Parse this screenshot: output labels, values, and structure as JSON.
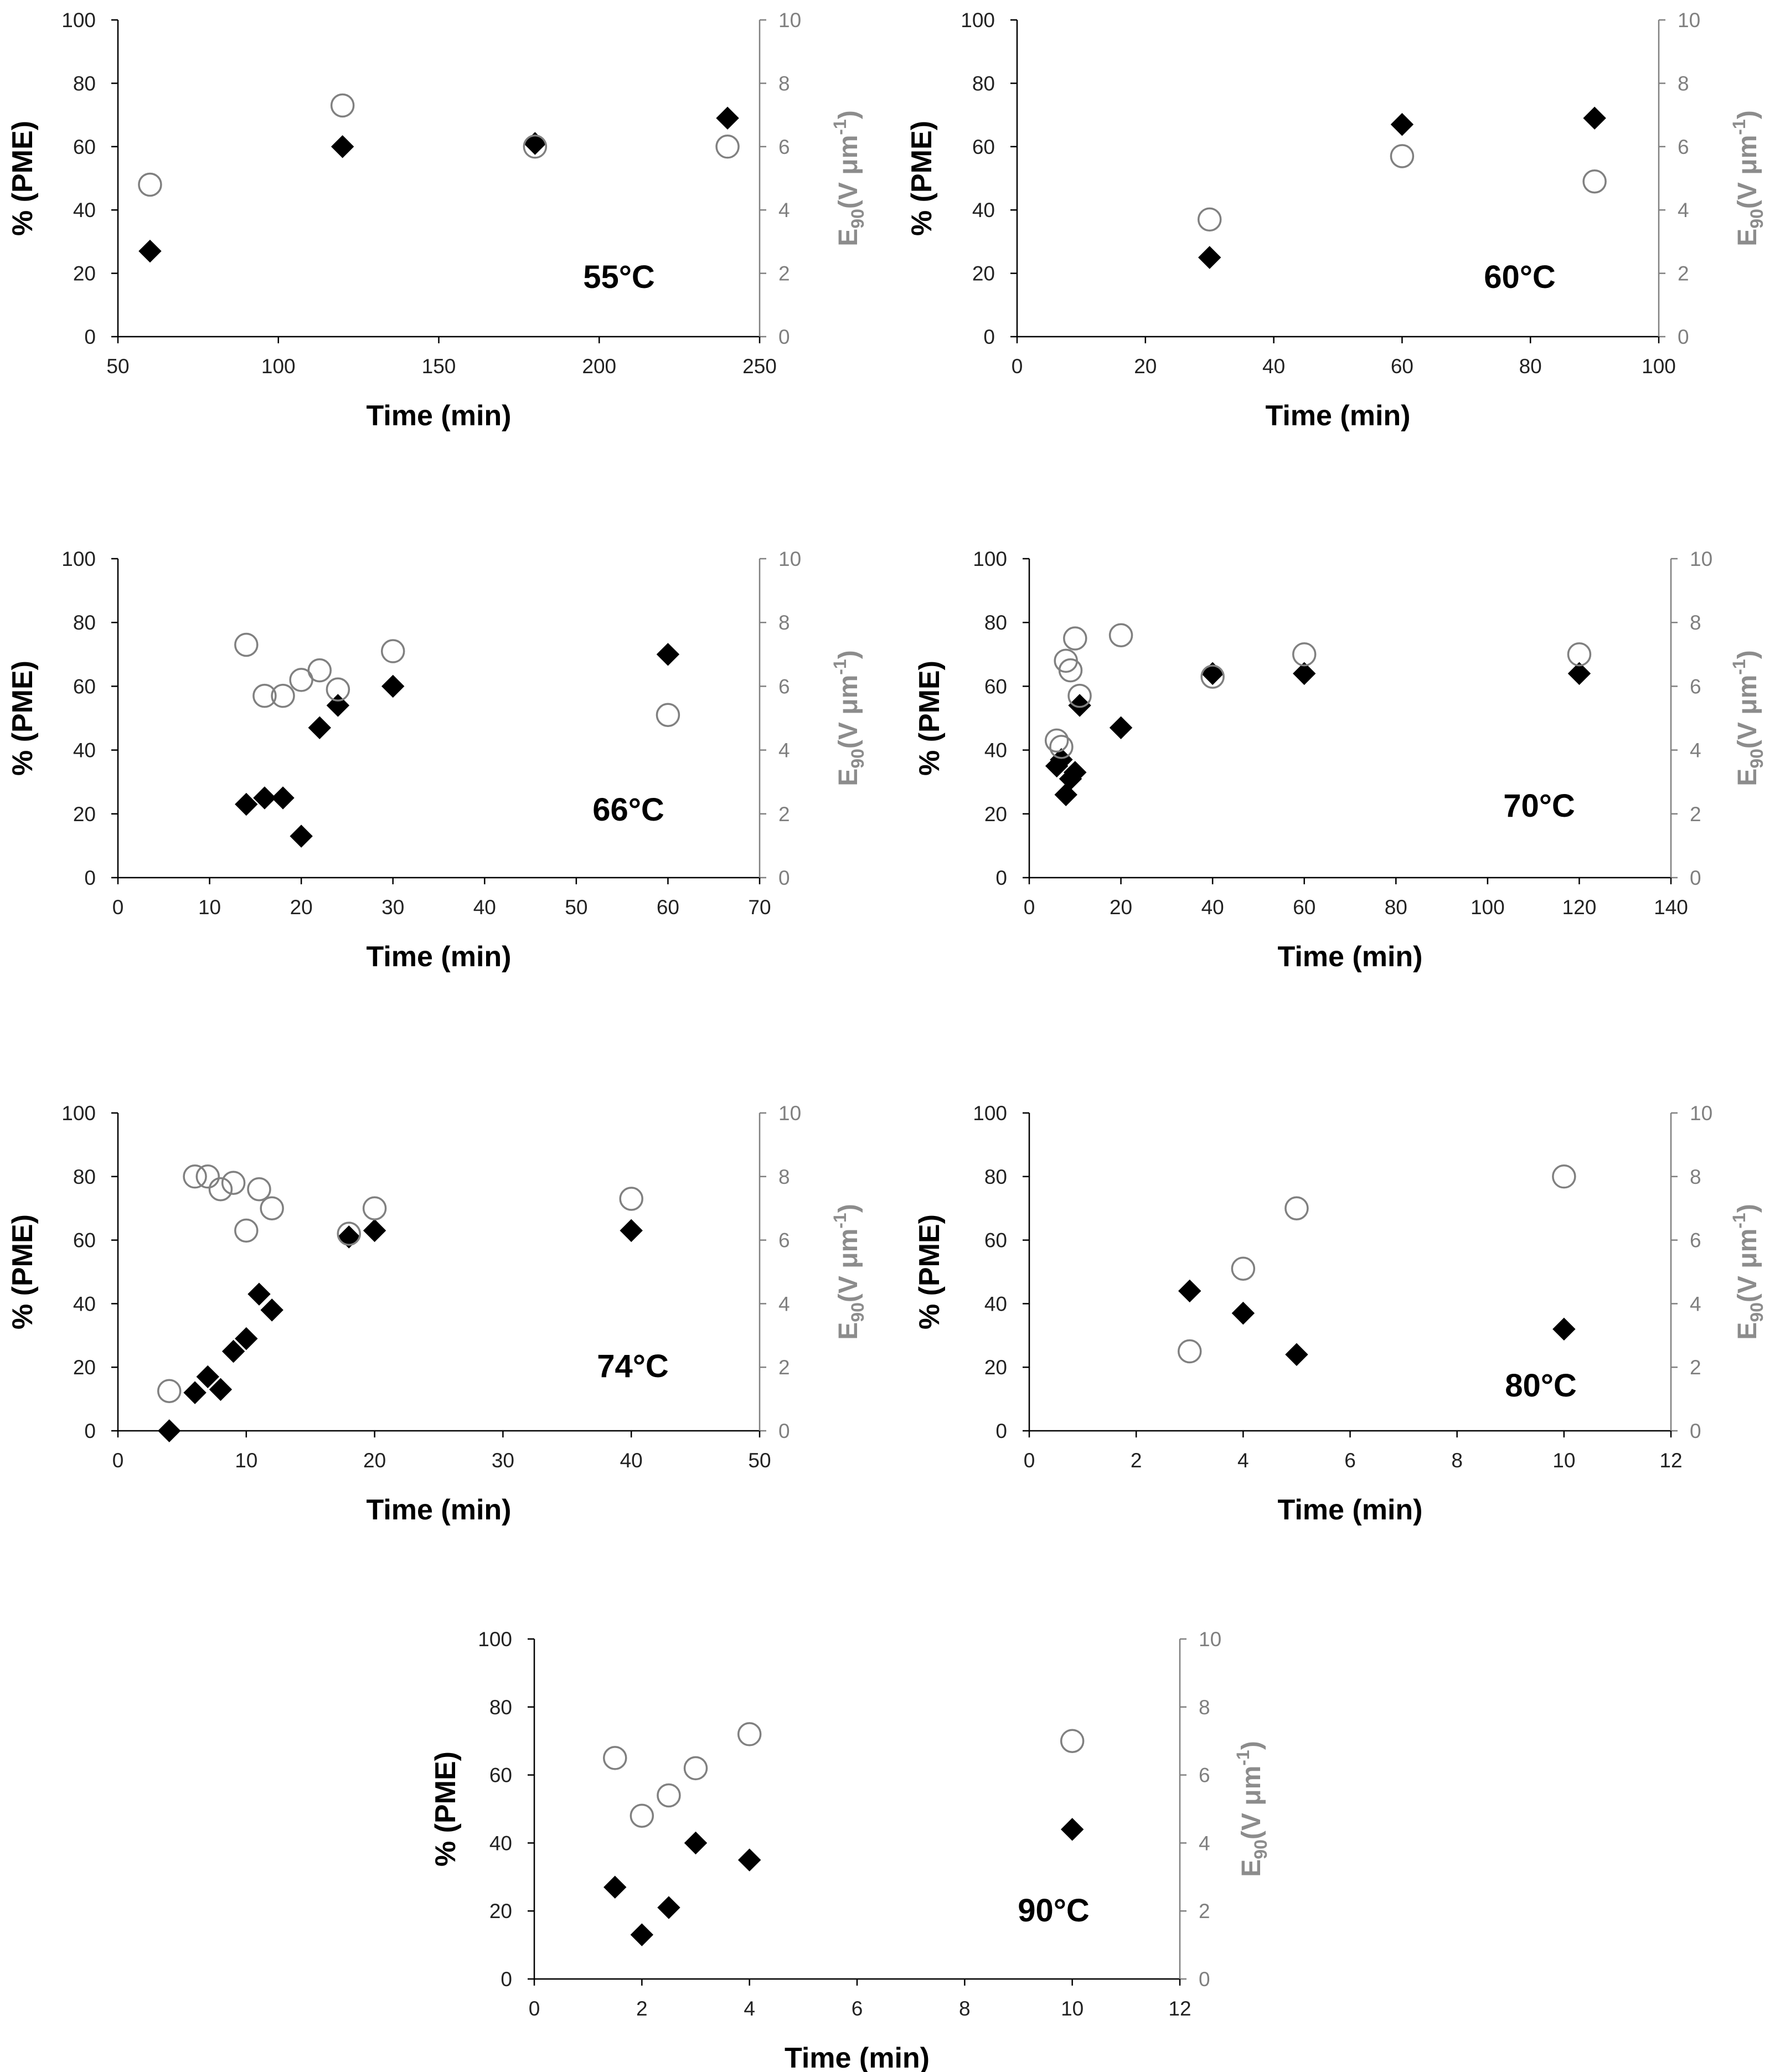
{
  "figure": {
    "colors": {
      "pme_marker": "#000000",
      "e90_marker": "#808080",
      "left_axis": "#000000",
      "right_axis": "#808080",
      "tick_left": "#222222",
      "tick_right": "#7f7f7f",
      "y2_label": "#8c8c8c"
    },
    "markers": {
      "pme": "diamond-filled",
      "e90": "circle-open"
    }
  },
  "chart_data": [
    {
      "type": "scatter",
      "annotation": "55°C",
      "xlabel": "Time (min)",
      "ylabel": "% (PME)",
      "y2label": {
        "base": "E",
        "sub": "90",
        "mid": "(V μm",
        "sup": "-1",
        "end": ")"
      },
      "xlim": [
        50,
        250
      ],
      "xticks": [
        50,
        100,
        150,
        200,
        250
      ],
      "ylim": [
        0,
        100
      ],
      "yticks": [
        0,
        20,
        40,
        60,
        80,
        100
      ],
      "y2lim": [
        0,
        10
      ],
      "y2ticks": [
        0,
        2,
        4,
        6,
        8,
        10
      ],
      "series": [
        {
          "name": "PME",
          "axis": "left",
          "marker": "diamond",
          "points": [
            [
              60,
              27
            ],
            [
              120,
              60
            ],
            [
              180,
              61
            ],
            [
              240,
              69
            ]
          ]
        },
        {
          "name": "E90",
          "axis": "right",
          "marker": "circle",
          "points": [
            [
              60,
              4.8
            ],
            [
              120,
              7.3
            ],
            [
              180,
              6.0
            ],
            [
              240,
              6.0
            ]
          ]
        }
      ]
    },
    {
      "type": "scatter",
      "annotation": "60°C",
      "xlabel": "Time (min)",
      "ylabel": "% (PME)",
      "y2label": {
        "base": "E",
        "sub": "90",
        "mid": "(V μm",
        "sup": "-1",
        "end": ")"
      },
      "xlim": [
        0,
        100
      ],
      "xticks": [
        0,
        20,
        40,
        60,
        80,
        100
      ],
      "ylim": [
        0,
        100
      ],
      "yticks": [
        0,
        20,
        40,
        60,
        80,
        100
      ],
      "y2lim": [
        0,
        10
      ],
      "y2ticks": [
        0,
        2,
        4,
        6,
        8,
        10
      ],
      "series": [
        {
          "name": "PME",
          "axis": "left",
          "marker": "diamond",
          "points": [
            [
              30,
              25
            ],
            [
              60,
              67
            ],
            [
              90,
              69
            ]
          ]
        },
        {
          "name": "E90",
          "axis": "right",
          "marker": "circle",
          "points": [
            [
              30,
              3.7
            ],
            [
              60,
              5.7
            ],
            [
              90,
              4.9
            ]
          ]
        }
      ]
    },
    {
      "type": "scatter",
      "annotation": "66°C",
      "xlabel": "Time (min)",
      "ylabel": "% (PME)",
      "y2label": {
        "base": "E",
        "sub": "90",
        "mid": "(V μm",
        "sup": "-1",
        "end": ")"
      },
      "xlim": [
        0,
        70
      ],
      "xticks": [
        0,
        10,
        20,
        30,
        40,
        50,
        60,
        70
      ],
      "ylim": [
        0,
        100
      ],
      "yticks": [
        0,
        20,
        40,
        60,
        80,
        100
      ],
      "y2lim": [
        0,
        10
      ],
      "y2ticks": [
        0,
        2,
        4,
        6,
        8,
        10
      ],
      "series": [
        {
          "name": "PME",
          "axis": "left",
          "marker": "diamond",
          "points": [
            [
              14,
              23
            ],
            [
              16,
              25
            ],
            [
              18,
              25
            ],
            [
              20,
              13
            ],
            [
              22,
              47
            ],
            [
              24,
              54
            ],
            [
              30,
              60
            ],
            [
              60,
              70
            ]
          ]
        },
        {
          "name": "E90",
          "axis": "right",
          "marker": "circle",
          "points": [
            [
              14,
              7.3
            ],
            [
              16,
              5.7
            ],
            [
              18,
              5.7
            ],
            [
              20,
              6.2
            ],
            [
              22,
              6.5
            ],
            [
              24,
              5.9
            ],
            [
              30,
              7.1
            ],
            [
              60,
              5.1
            ]
          ]
        }
      ]
    },
    {
      "type": "scatter",
      "annotation": "70°C",
      "xlabel": "Time (min)",
      "ylabel": "% (PME)",
      "y2label": {
        "base": "E",
        "sub": "90",
        "mid": "(V μm",
        "sup": "-1",
        "end": ")"
      },
      "xlim": [
        0,
        140
      ],
      "xticks": [
        0,
        20,
        40,
        60,
        80,
        100,
        120,
        140
      ],
      "ylim": [
        0,
        100
      ],
      "yticks": [
        0,
        20,
        40,
        60,
        80,
        100
      ],
      "y2lim": [
        0,
        10
      ],
      "y2ticks": [
        0,
        2,
        4,
        6,
        8,
        10
      ],
      "series": [
        {
          "name": "PME",
          "axis": "left",
          "marker": "diamond",
          "points": [
            [
              6,
              35
            ],
            [
              7,
              37
            ],
            [
              8,
              26
            ],
            [
              9,
              31
            ],
            [
              10,
              33
            ],
            [
              11,
              54
            ],
            [
              20,
              47
            ],
            [
              40,
              64
            ],
            [
              60,
              64
            ],
            [
              120,
              64
            ]
          ]
        },
        {
          "name": "E90",
          "axis": "right",
          "marker": "circle",
          "points": [
            [
              6,
              4.3
            ],
            [
              7,
              4.1
            ],
            [
              8,
              6.8
            ],
            [
              9,
              6.5
            ],
            [
              10,
              7.5
            ],
            [
              11,
              5.7
            ],
            [
              20,
              7.6
            ],
            [
              40,
              6.3
            ],
            [
              60,
              7.0
            ],
            [
              120,
              7.0
            ]
          ]
        }
      ]
    },
    {
      "type": "scatter",
      "annotation": "74°C",
      "xlabel": "Time (min)",
      "ylabel": "% (PME)",
      "y2label": {
        "base": "E",
        "sub": "90",
        "mid": "(V μm",
        "sup": "-1",
        "end": ")"
      },
      "xlim": [
        0,
        50
      ],
      "xticks": [
        0,
        10,
        20,
        30,
        40,
        50
      ],
      "ylim": [
        0,
        100
      ],
      "yticks": [
        0,
        20,
        40,
        60,
        80,
        100
      ],
      "y2lim": [
        0,
        10
      ],
      "y2ticks": [
        0,
        2,
        4,
        6,
        8,
        10
      ],
      "series": [
        {
          "name": "PME",
          "axis": "left",
          "marker": "diamond",
          "points": [
            [
              4,
              0
            ],
            [
              6,
              12
            ],
            [
              7,
              17
            ],
            [
              8,
              13
            ],
            [
              9,
              25
            ],
            [
              10,
              29
            ],
            [
              11,
              43
            ],
            [
              12,
              38
            ],
            [
              18,
              61
            ],
            [
              20,
              63
            ],
            [
              40,
              63
            ]
          ]
        },
        {
          "name": "E90",
          "axis": "right",
          "marker": "circle",
          "points": [
            [
              4,
              1.25
            ],
            [
              6,
              8.0
            ],
            [
              7,
              8.0
            ],
            [
              8,
              7.6
            ],
            [
              9,
              7.8
            ],
            [
              10,
              6.3
            ],
            [
              11,
              7.6
            ],
            [
              12,
              7.0
            ],
            [
              18,
              6.2
            ],
            [
              20,
              7.0
            ],
            [
              40,
              7.3
            ]
          ]
        }
      ]
    },
    {
      "type": "scatter",
      "annotation": "80°C",
      "xlabel": "Time (min)",
      "ylabel": "% (PME)",
      "y2label": {
        "base": "E",
        "sub": "90",
        "mid": "(V μm",
        "sup": "-1",
        "end": ")"
      },
      "xlim": [
        0,
        12
      ],
      "xticks": [
        0,
        2,
        4,
        6,
        8,
        10,
        12
      ],
      "ylim": [
        0,
        100
      ],
      "yticks": [
        0,
        20,
        40,
        60,
        80,
        100
      ],
      "y2lim": [
        0,
        10
      ],
      "y2ticks": [
        0,
        2,
        4,
        6,
        8,
        10
      ],
      "series": [
        {
          "name": "PME",
          "axis": "left",
          "marker": "diamond",
          "points": [
            [
              3,
              44
            ],
            [
              4,
              37
            ],
            [
              5,
              24
            ],
            [
              10,
              32
            ]
          ]
        },
        {
          "name": "E90",
          "axis": "right",
          "marker": "circle",
          "points": [
            [
              3,
              2.5
            ],
            [
              4,
              5.1
            ],
            [
              5,
              7.0
            ],
            [
              10,
              8.0
            ]
          ]
        }
      ]
    },
    {
      "type": "scatter",
      "annotation": "90°C",
      "xlabel": "Time (min)",
      "ylabel": "% (PME)",
      "y2label": {
        "base": "E",
        "sub": "90",
        "mid": "(V μm",
        "sup": "-1",
        "end": ")"
      },
      "xlim": [
        0,
        12
      ],
      "xticks": [
        0,
        2,
        4,
        6,
        8,
        10,
        12
      ],
      "ylim": [
        0,
        100
      ],
      "yticks": [
        0,
        20,
        40,
        60,
        80,
        100
      ],
      "y2lim": [
        0,
        10
      ],
      "y2ticks": [
        0,
        2,
        4,
        6,
        8,
        10
      ],
      "series": [
        {
          "name": "PME",
          "axis": "left",
          "marker": "diamond",
          "points": [
            [
              1.5,
              27
            ],
            [
              2,
              13
            ],
            [
              2.5,
              21
            ],
            [
              3,
              40
            ],
            [
              4,
              35
            ],
            [
              10,
              44
            ]
          ]
        },
        {
          "name": "E90",
          "axis": "right",
          "marker": "circle",
          "points": [
            [
              1.5,
              6.5
            ],
            [
              2,
              4.8
            ],
            [
              2.5,
              5.4
            ],
            [
              3,
              6.2
            ],
            [
              4,
              7.2
            ],
            [
              10,
              7.0
            ]
          ]
        }
      ]
    }
  ]
}
